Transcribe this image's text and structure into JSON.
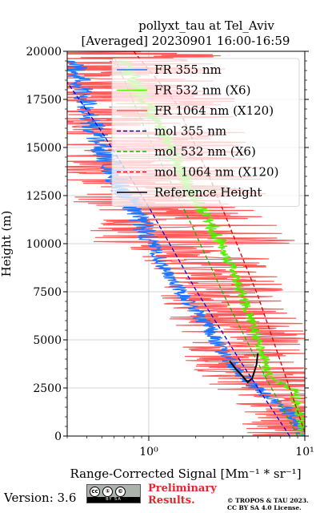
{
  "chart_data": {
    "type": "line",
    "title_line1": "pollyxt_tau at Tel_Aviv",
    "title_line2": "[Averaged] 20230901 16:00-16:59",
    "ylabel": "Height (m)",
    "xlabel": "Range-Corrected Signal [Mm⁻¹ * sr⁻¹]",
    "x_scale": "log",
    "xlim": [
      0.3,
      10
    ],
    "ylim": [
      0,
      20000
    ],
    "y_ticks": [
      0,
      2500,
      5000,
      7500,
      10000,
      12500,
      15000,
      17500,
      20000
    ],
    "x_ticks": [
      1,
      10
    ],
    "x_tick_labels": [
      "10⁰",
      "10¹"
    ],
    "grid": true,
    "legend_position": "top-right",
    "series": [
      {
        "name": "FR 355 nm",
        "color": "#1f77ff",
        "style": "solid",
        "noise": 0.12,
        "x": [
          10,
          7.5,
          4.8,
          3.6,
          2.9,
          2.5,
          2.0,
          1.6,
          1.3,
          1.05,
          0.85,
          0.65,
          0.5,
          0.4,
          0.33
        ],
        "y": [
          0,
          1500,
          2500,
          3500,
          4500,
          5500,
          6500,
          7500,
          8500,
          10000,
          11500,
          13000,
          15000,
          17000,
          19500
        ]
      },
      {
        "name": "FR 532 nm (X6)",
        "color": "#55ee00",
        "style": "solid",
        "noise": 0.08,
        "x": [
          10,
          8.5,
          6.0,
          5.5,
          5.0,
          4.5,
          4.1,
          3.7,
          3.3,
          2.9,
          2.5,
          2.1,
          1.8,
          1.4,
          1.0,
          0.7
        ],
        "y": [
          0,
          2400,
          3000,
          4000,
          5000,
          6000,
          7000,
          8000,
          9000,
          10000,
          11000,
          12000,
          13000,
          15000,
          17000,
          19500
        ]
      },
      {
        "name": "FR 1064 nm (X120)",
        "color": "#ff5a5a",
        "style": "solid",
        "noise": 1.0,
        "x": [
          10,
          9.5,
          7.0,
          5.0,
          4.0,
          3.0,
          2.0,
          1.0,
          0.7
        ],
        "y": [
          0,
          1500,
          2500,
          3500,
          5000,
          7500,
          10000,
          15000,
          20000
        ]
      },
      {
        "name": "mol 355 nm",
        "color": "#0000dd",
        "style": "dashed",
        "x": [
          8.0,
          4.0,
          2.0,
          1.0,
          0.5,
          0.3
        ],
        "y": [
          0,
          3700,
          7600,
          11900,
          15800,
          18400
        ]
      },
      {
        "name": "mol 532 nm (X6)",
        "color": "#00bb00",
        "style": "dashed",
        "x": [
          9.0,
          5.0,
          3.0,
          1.8,
          1.0,
          0.6
        ],
        "y": [
          0,
          3800,
          7400,
          11300,
          15500,
          19700
        ]
      },
      {
        "name": "mol 1064 nm (X120)",
        "color": "#dd0000",
        "style": "dashed",
        "x": [
          10,
          5.0,
          2.5,
          1.5,
          0.8
        ],
        "y": [
          200,
          7300,
          13300,
          17300,
          20000
        ]
      },
      {
        "name": "Reference Height",
        "color": "#000000",
        "style": "solid",
        "x": [
          3.3,
          3.6,
          4.0,
          4.3,
          4.6,
          4.9,
          5.0
        ],
        "y": [
          3900,
          3500,
          3100,
          2800,
          3000,
          3700,
          4300
        ]
      }
    ]
  },
  "footer": {
    "version": "Version: 3.6",
    "cc_symbols": [
      "cc",
      "①",
      "©"
    ],
    "cc_strip": "BY   SA",
    "preliminary_line1": "Preliminary",
    "preliminary_line2": "Results.",
    "copyright_line1": "© TROPOS & TAU 2023.",
    "copyright_line2": "CC BY SA 4.0 License."
  },
  "colors": {
    "preliminary": "#e8232b",
    "axis": "#000000",
    "grid": "#b0b0b0"
  }
}
